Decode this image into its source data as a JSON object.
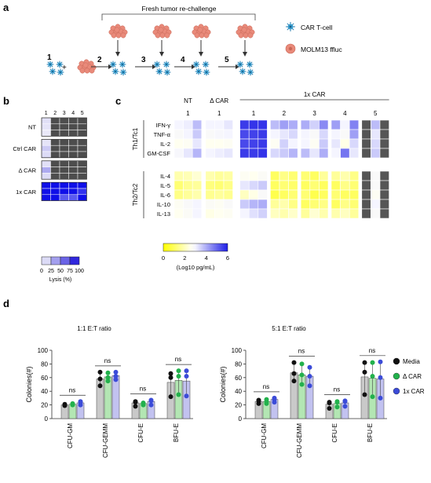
{
  "panels": {
    "a": "a",
    "b": "b",
    "c": "c",
    "d": "d"
  },
  "panel_a": {
    "title": "Fresh tumor re-challenge",
    "steps": [
      "1",
      "2",
      "3",
      "4",
      "5"
    ],
    "plus": "+",
    "legend": [
      {
        "label": "CAR T-cell",
        "icon": "car-t-cell-icon",
        "color": "#3b9fd0"
      },
      {
        "label": "MOLM13 ffluc",
        "icon": "tumor-cell-icon",
        "color": "#e98a7a"
      }
    ]
  },
  "panel_b": {
    "col_labels": [
      "1",
      "2",
      "3",
      "4",
      "5"
    ],
    "groups": [
      {
        "label": "NT",
        "values": [
          [
            10,
            null,
            null,
            null,
            null
          ],
          [
            8,
            null,
            null,
            null,
            null
          ],
          [
            6,
            null,
            null,
            null,
            null
          ]
        ]
      },
      {
        "label": "Ctrl CAR",
        "values": [
          [
            8,
            null,
            null,
            null,
            null
          ],
          [
            20,
            null,
            null,
            null,
            null
          ],
          [
            12,
            null,
            null,
            null,
            null
          ]
        ]
      },
      {
        "label": "Δ CAR",
        "values": [
          [
            10,
            null,
            null,
            null,
            null
          ],
          [
            35,
            null,
            null,
            null,
            null
          ],
          [
            12,
            null,
            null,
            null,
            null
          ]
        ]
      },
      {
        "label": "1x CAR",
        "values": [
          [
            100,
            100,
            100,
            100,
            100
          ],
          [
            100,
            100,
            100,
            100,
            90
          ],
          [
            100,
            100,
            70,
            80,
            100
          ]
        ]
      }
    ],
    "colorbar": {
      "ticks": [
        "0",
        "25",
        "50",
        "75",
        "100"
      ],
      "label": "Lysis (%)"
    }
  },
  "panel_c": {
    "group_labels": [
      {
        "label": "NT",
        "col": "1"
      },
      {
        "label": "Δ CAR",
        "col": "1"
      },
      {
        "label": "1x CAR",
        "cols": [
          "1",
          "2",
          "3",
          "4",
          "5"
        ]
      }
    ],
    "th1_label": "Th1/Tc1",
    "th2_label": "Th2/Tc2",
    "cytokines": [
      "IFN-γ",
      "TNF-α",
      "IL-2",
      "GM-CSF",
      "IL-4",
      "IL-5",
      "IL-6",
      "IL-10",
      "IL-13"
    ],
    "colorbar": {
      "ticks": [
        "0",
        "2",
        "4",
        "6"
      ],
      "label": "(Log10 pg/mL)"
    }
  },
  "chart_data": [
    {
      "type": "bar",
      "title": "1:1 E:T ratio",
      "ylabel": "Colonies(#)",
      "ylim": [
        0,
        100
      ],
      "yticks": [
        "0",
        "20",
        "40",
        "60",
        "80",
        "100"
      ],
      "categories": [
        "CFU-GM",
        "CFU-GEMM",
        "CFU-E",
        "BFU-E"
      ],
      "series": [
        {
          "name": "Media",
          "color": "#c9c9c9",
          "dot": "#111111",
          "values": [
            20,
            58,
            23,
            53
          ],
          "points": [
            [
              20,
              19,
              21
            ],
            [
              48,
              58,
              68
            ],
            [
              18,
              25,
              24
            ],
            [
              32,
              60,
              66
            ]
          ]
        },
        {
          "name": "Δ CAR",
          "color": "#b3e6b3",
          "dot": "#22b14c",
          "values": [
            21,
            61,
            22,
            56
          ],
          "points": [
            [
              20,
              21,
              22
            ],
            [
              55,
              60,
              67
            ],
            [
              20,
              23,
              22
            ],
            [
              35,
              62,
              70
            ]
          ]
        },
        {
          "name": "1x CAR",
          "color": "#c2c2f0",
          "dot": "#3b4bd8",
          "values": [
            23,
            63,
            25,
            55
          ],
          "points": [
            [
              20,
              24,
              25
            ],
            [
              57,
              62,
              68
            ],
            [
              20,
              27,
              26
            ],
            [
              33,
              62,
              70
            ]
          ]
        }
      ],
      "annotations": [
        "ns",
        "ns",
        "ns",
        "ns"
      ]
    },
    {
      "type": "bar",
      "title": "5:1 E:T ratio",
      "ylabel": "Colonies(#)",
      "ylim": [
        0,
        100
      ],
      "yticks": [
        "0",
        "20",
        "40",
        "60",
        "80",
        "100"
      ],
      "categories": [
        "CFU-GM",
        "CFU-GEMM",
        "CFU-E",
        "BFU-E"
      ],
      "series": [
        {
          "name": "Media",
          "color": "#c9c9c9",
          "dot": "#111111",
          "values": [
            25,
            67,
            21,
            61
          ],
          "points": [
            [
              22,
              26,
              27
            ],
            [
              55,
              66,
              82
            ],
            [
              15,
              24,
              23
            ],
            [
              35,
              68,
              82
            ]
          ]
        },
        {
          "name": "Δ CAR",
          "color": "#b3e6b3",
          "dot": "#22b14c",
          "values": [
            25,
            64,
            22,
            59
          ],
          "points": [
            [
              22,
              25,
              28
            ],
            [
              50,
              64,
              80
            ],
            [
              17,
              24,
              25
            ],
            [
              32,
              62,
              82
            ]
          ]
        },
        {
          "name": "1x CAR",
          "color": "#c2c2f0",
          "dot": "#3b4bd8",
          "values": [
            28,
            62,
            23,
            58
          ],
          "points": [
            [
              24,
              28,
              30
            ],
            [
              48,
              62,
              75
            ],
            [
              18,
              25,
              26
            ],
            [
              30,
              60,
              83
            ]
          ]
        }
      ],
      "annotations": [
        "ns",
        "ns",
        "ns",
        "ns"
      ]
    }
  ],
  "legend_d": [
    {
      "label": "Media",
      "color": "#111111"
    },
    {
      "label": "Δ CAR",
      "color": "#22b14c"
    },
    {
      "label": "1x CAR",
      "color": "#3b4bd8"
    }
  ]
}
